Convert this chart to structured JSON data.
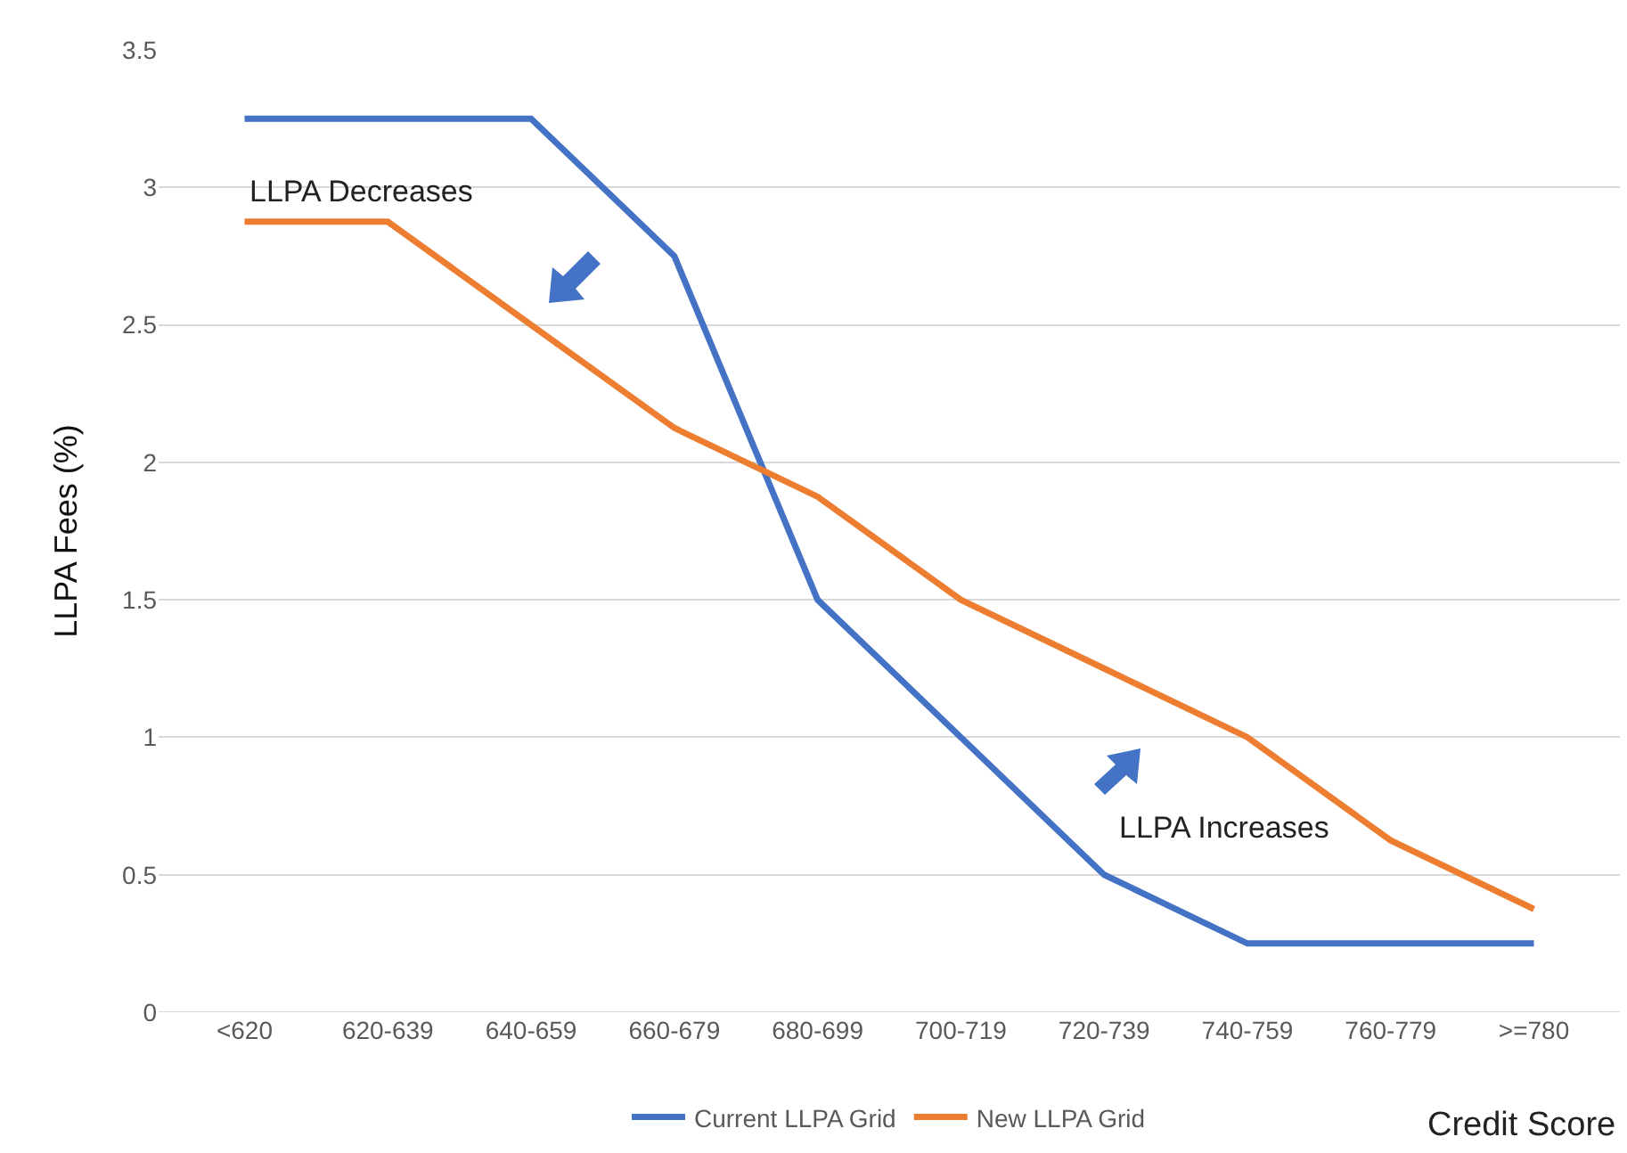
{
  "chart_data": {
    "type": "line",
    "ylabel": "LLPA Fees (%)",
    "xlabel": "Credit Score",
    "categories": [
      "<620",
      "620-639",
      "640-659",
      "660-679",
      "680-699",
      "700-719",
      "720-739",
      "740-759",
      "760-779",
      ">=780"
    ],
    "series": [
      {
        "name": "Current LLPA Grid",
        "color": "#4472c4",
        "values": [
          3.25,
          3.25,
          3.25,
          2.75,
          1.5,
          1.0,
          0.5,
          0.25,
          0.25,
          0.25
        ]
      },
      {
        "name": "New LLPA Grid",
        "color": "#ed7d31",
        "values": [
          2.875,
          2.875,
          2.5,
          2.125,
          1.875,
          1.5,
          1.25,
          1.0,
          0.625,
          0.375
        ]
      }
    ],
    "ylim": [
      0,
      3.5
    ],
    "yticks": [
      0,
      0.5,
      1,
      1.5,
      2,
      2.5,
      3,
      3.5
    ],
    "annotations": [
      "LLPA Decreases",
      "LLPA Increases"
    ],
    "grid": "y",
    "legend": "bottom",
    "marker": "none",
    "line_style": "solid"
  }
}
